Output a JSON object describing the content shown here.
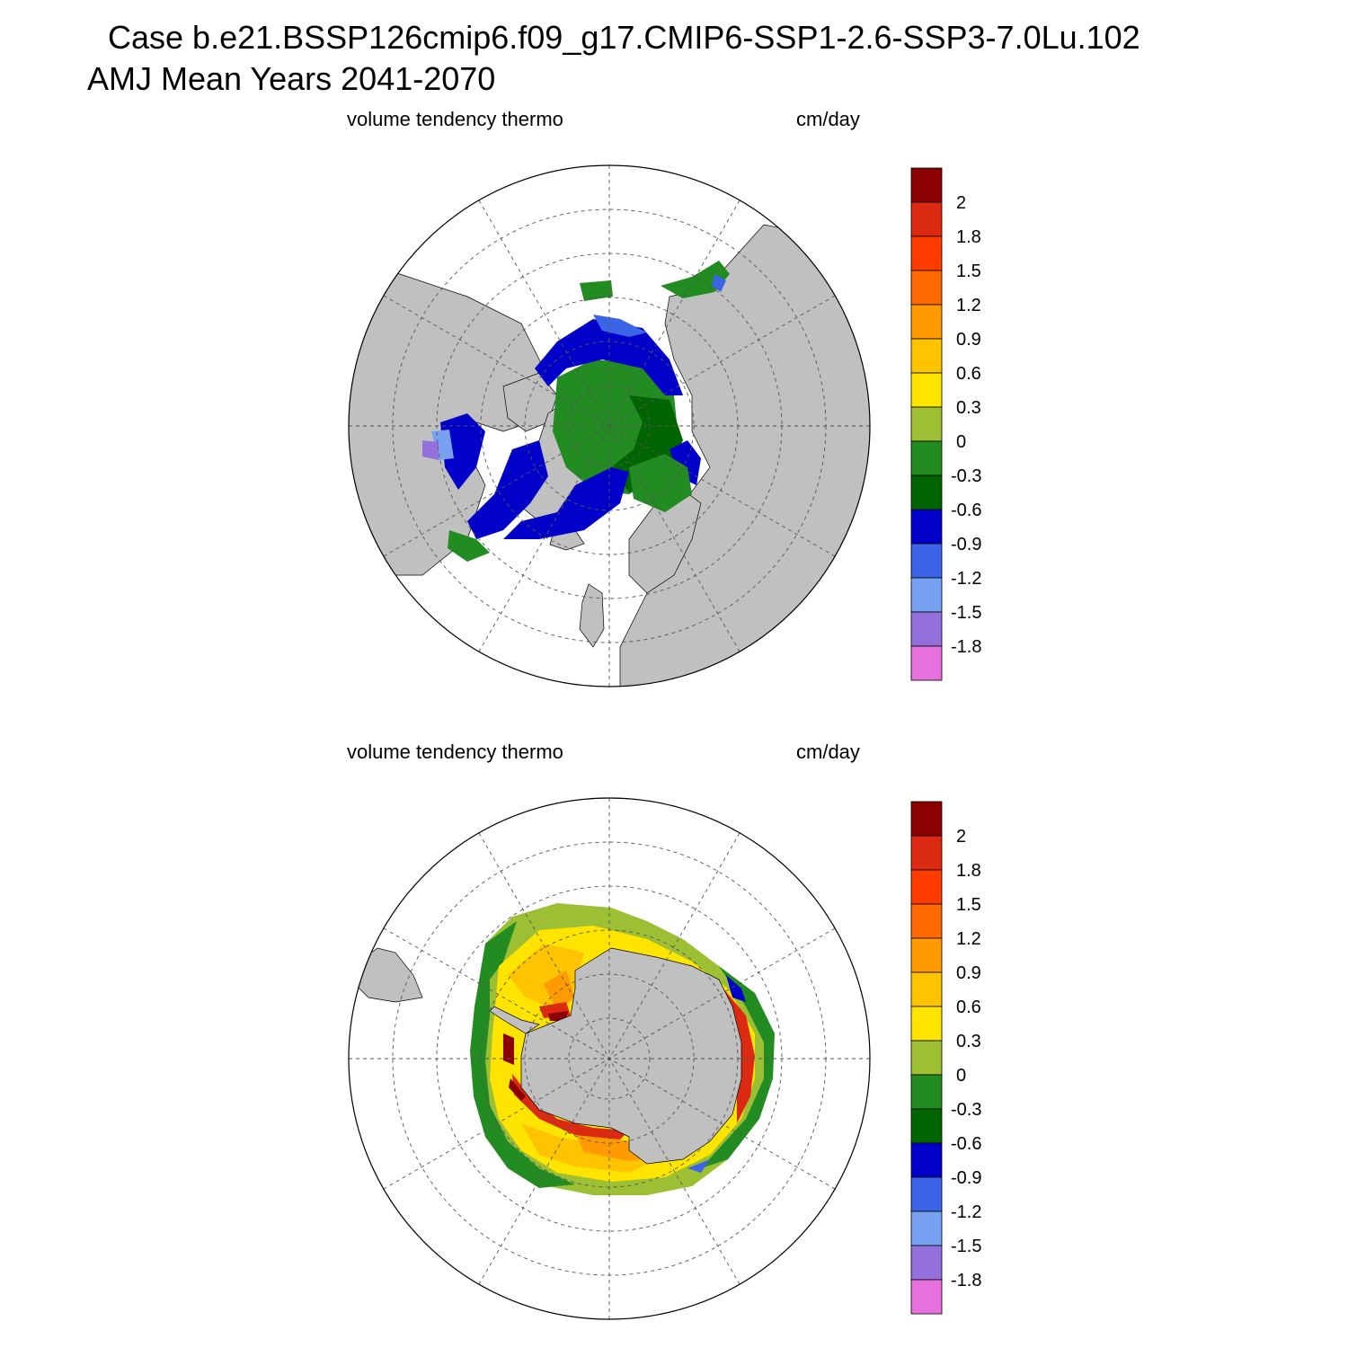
{
  "title": {
    "line1": "Case b.e21.BSSP126cmip6.f09_g17.CMIP6-SSP1-2.6-SSP3-7.0Lu.102",
    "line2": "AMJ Mean   Years 2041-2070"
  },
  "panels": [
    {
      "hemisphere": "north",
      "left_label": "volume tendency thermo",
      "right_label": "cm/day"
    },
    {
      "hemisphere": "south",
      "left_label": "volume tendency thermo",
      "right_label": "cm/day"
    }
  ],
  "colorbar": {
    "labels": [
      "2",
      "1.8",
      "1.5",
      "1.2",
      "0.9",
      "0.6",
      "0.3",
      "0",
      "-0.3",
      "-0.6",
      "-0.9",
      "-1.2",
      "-1.5",
      "-1.8"
    ],
    "colors": [
      "#8b0000",
      "#dc2a12",
      "#ff3c00",
      "#ff6a00",
      "#ff9a00",
      "#ffc400",
      "#ffe400",
      "#9cbf34",
      "#228b22",
      "#006400",
      "#0000c8",
      "#3c64e6",
      "#78a0f0",
      "#9370db",
      "#e670dc"
    ]
  },
  "colors": {
    "land": "#c0c0c0",
    "ocean": "#ffffff"
  }
}
